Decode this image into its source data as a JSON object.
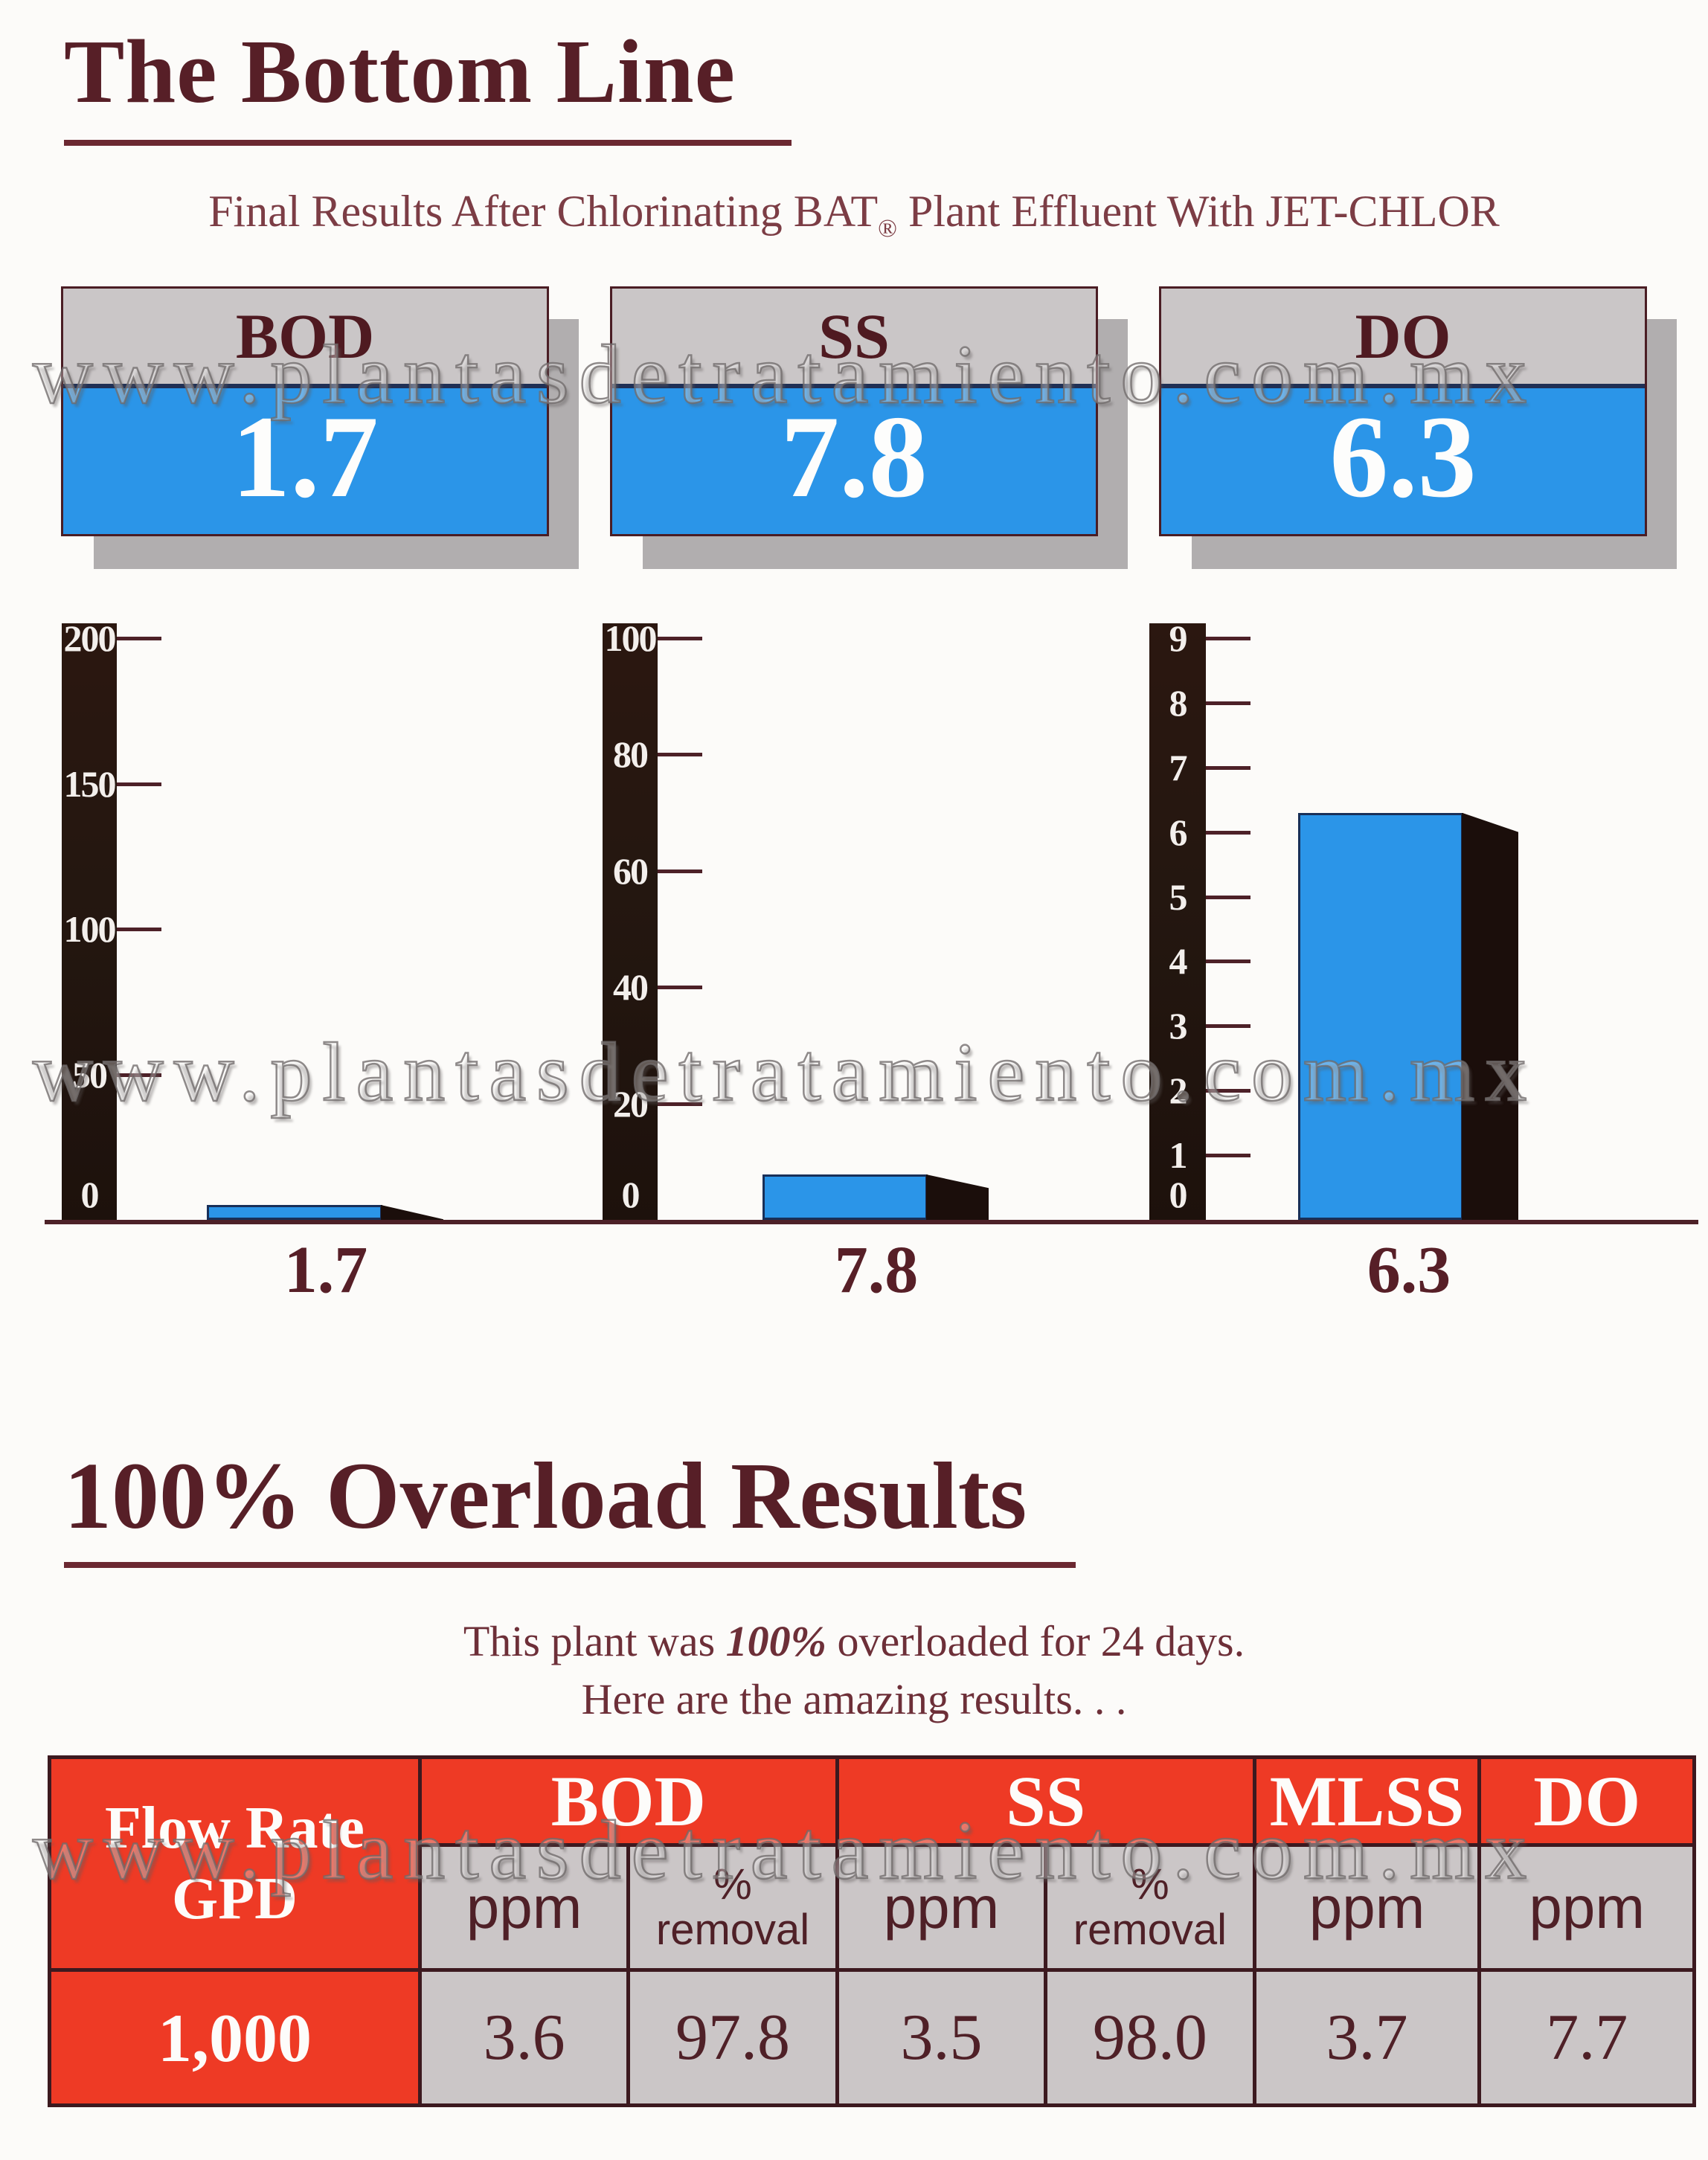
{
  "header": {
    "title": "The Bottom Line",
    "subtitle_pre": "Final Results After Chlorinating BAT",
    "subtitle_reg": "®",
    "subtitle_post": " Plant Effluent With JET-CHLOR"
  },
  "watermark": {
    "text": "www.plantasdetratamiento.com.mx"
  },
  "cards": [
    {
      "label": "BOD",
      "value": "1.7"
    },
    {
      "label": "SS",
      "value": "7.8"
    },
    {
      "label": "DO",
      "value": "6.3"
    }
  ],
  "chart_data": [
    {
      "type": "bar",
      "title": "BOD",
      "categories": [
        "1.7"
      ],
      "values": [
        1.7
      ],
      "ylim": [
        0,
        200
      ],
      "yticks": [
        200,
        150,
        100,
        50,
        0
      ],
      "grid": false,
      "legend": false
    },
    {
      "type": "bar",
      "title": "SS",
      "categories": [
        "7.8"
      ],
      "values": [
        7.8
      ],
      "ylim": [
        0,
        100
      ],
      "yticks": [
        100,
        80,
        60,
        40,
        20,
        0
      ],
      "grid": false,
      "legend": false
    },
    {
      "type": "bar",
      "title": "DO",
      "categories": [
        "6.3"
      ],
      "values": [
        6.3
      ],
      "ylim": [
        0,
        9
      ],
      "yticks": [
        9,
        8,
        7,
        6,
        5,
        4,
        3,
        2,
        1,
        0
      ],
      "grid": false,
      "legend": false
    }
  ],
  "overload": {
    "heading": "100% Overload Results",
    "line1_pre": "This plant was ",
    "line1_em": "100%",
    "line1_post": " overloaded for 24 days.",
    "line2": "Here are the amazing results. . ."
  },
  "table": {
    "flow_line1": "Flow Rate",
    "flow_line2": "GPD",
    "groups": [
      {
        "label": "BOD",
        "sub": [
          "ppm",
          "% removal"
        ]
      },
      {
        "label": "SS",
        "sub": [
          "ppm",
          "% removal"
        ]
      },
      {
        "label": "MLSS",
        "sub": [
          "ppm"
        ]
      },
      {
        "label": "DO",
        "sub": [
          "ppm"
        ]
      }
    ],
    "subheaders": [
      "ppm",
      "%\nremoval",
      "ppm",
      "%\nremoval",
      "ppm",
      "ppm"
    ],
    "row": [
      "1,000",
      "3.6",
      "97.8",
      "3.5",
      "98.0",
      "3.7",
      "7.7"
    ]
  },
  "colors": {
    "maroon": "#571f27",
    "maroon_light": "#7c3d45",
    "table_red": "#ee3a25",
    "bar_blue": "#2b95e8",
    "card_gray": "#cac6c7",
    "table_gray": "#cbc6c7",
    "shadow_gray": "#b1aeaf",
    "axis_dark": "#241710",
    "bar_side_dark": "#1b0e0b",
    "divider_navy": "#203055"
  }
}
